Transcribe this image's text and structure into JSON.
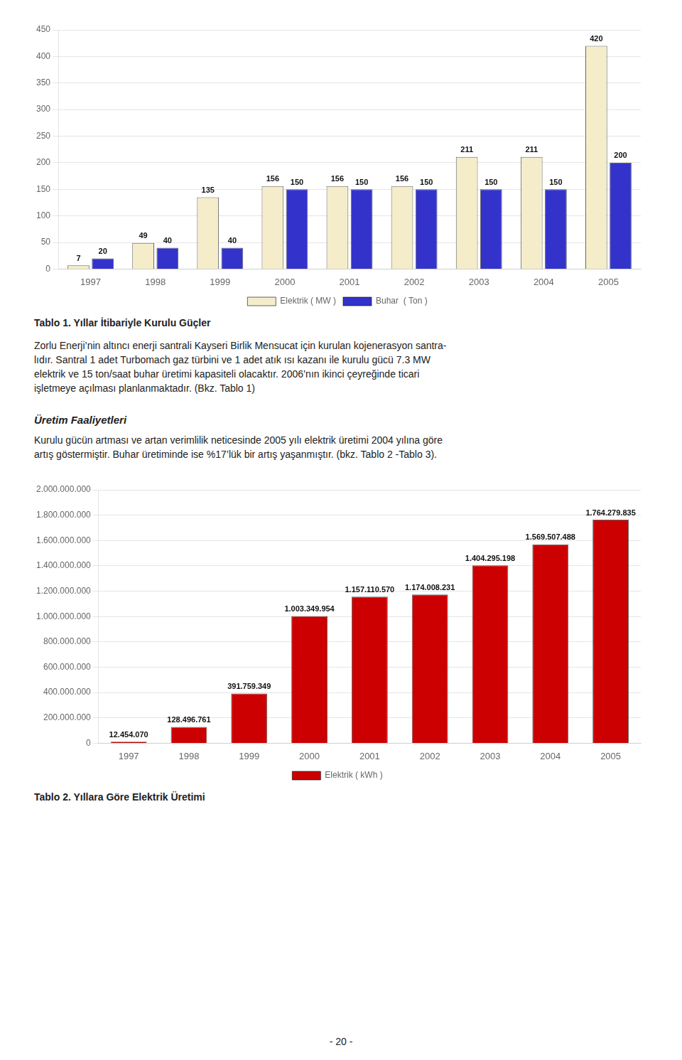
{
  "chart_data": [
    {
      "type": "bar",
      "title": "Tablo 1. Yıllar İtibariyle Kurulu Güçler",
      "annotations": [
        "Zorlu Enerji’nin altıncı enerji santrali Kayseri Birlik Mensucat için kurulan kojenerasyon santra-",
        "lıdır. Santral 1 adet Turbomach gaz türbini ve 1 adet atık ısı kazanı ile kurulu gücü 7.3 MW",
        "elektrik ve 15 ton/saat buhar üretimi kapasiteli olacaktır. 2006’nın ikinci çeyreğinde ticari",
        "işletmeye açılması planlanmaktadır. (Bkz. Tablo 1)"
      ],
      "categories": [
        "1997",
        "1998",
        "1999",
        "2000",
        "2001",
        "2002",
        "2003",
        "2004",
        "2005"
      ],
      "series": [
        {
          "name": "Elektrik ( MW )",
          "color": "#F5EDCA",
          "values": [
            7,
            49,
            135,
            156,
            156,
            156,
            211,
            211,
            420
          ]
        },
        {
          "name": "Buhar  ( Ton )",
          "color": "#3333CC",
          "values": [
            20,
            40,
            40,
            150,
            150,
            150,
            150,
            150,
            200
          ]
        }
      ],
      "ylim": [
        0,
        450
      ],
      "yticks": [
        0,
        50,
        100,
        150,
        200,
        250,
        300,
        350,
        400,
        450
      ],
      "grid": true,
      "legend": "bottom",
      "data_labels": true
    },
    {
      "type": "bar",
      "title": "Tablo 2. Yıllara Göre Elektrik Üretimi",
      "subtitle": "Üretim Faaliyetleri",
      "annotations": [
        "Kurulu gücün artması ve artan verimlilik neticesinde 2005 yılı elektrik üretimi 2004 yılına göre",
        "artış göstermiştir. Buhar üretiminde ise %17’lük bir artış yaşanmıştır. (bkz. Tablo 2 -Tablo 3)."
      ],
      "footer": "- 20 -",
      "categories": [
        "1997",
        "1998",
        "1999",
        "2000",
        "2001",
        "2002",
        "2003",
        "2004",
        "2005"
      ],
      "series": [
        {
          "name": "Elektrik ( kWh )",
          "color": "#CC0000",
          "values": [
            12454070,
            128496761,
            391759349,
            1003349954,
            1157110570,
            1174008231,
            1404295198,
            1569507488,
            1764279835
          ],
          "value_labels": [
            "12.454.070",
            "128.496.761",
            "391.759.349",
            "1.003.349.954",
            "1.157.110.570",
            "1.174.008.231",
            "1.404.295.198",
            "1.569.507.488",
            "1.764.279.835"
          ]
        }
      ],
      "ylim": [
        0,
        2000000000
      ],
      "yticks": [
        0,
        {
          "value": 200000000,
          "label": "200.000.000"
        },
        {
          "value": 400000000,
          "label": "400.000.000"
        },
        {
          "value": 600000000,
          "label": "600.000.000"
        },
        {
          "value": 800000000,
          "label": "800.000.000"
        },
        {
          "value": 1000000000,
          "label": "1.000.000.000"
        },
        {
          "value": 1200000000,
          "label": "1.200.000.000"
        },
        {
          "value": 1400000000,
          "label": "1.400.000.000"
        },
        {
          "value": 1600000000,
          "label": "1.600.000.000"
        },
        {
          "value": 1800000000,
          "label": "1.800.000.000"
        },
        {
          "value": 2000000000,
          "label": "2.000.000.000"
        }
      ],
      "grid": true,
      "legend": "bottom",
      "data_labels": true
    }
  ]
}
